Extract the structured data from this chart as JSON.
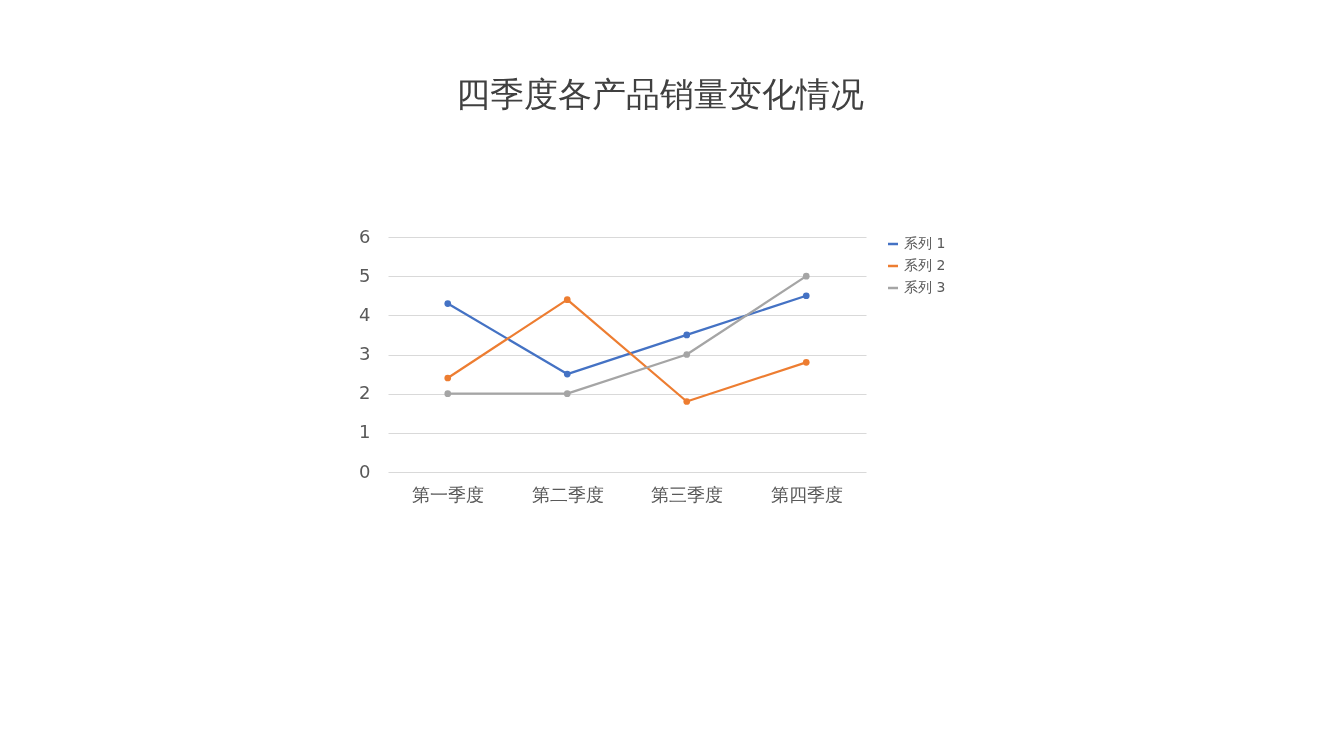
{
  "chart_data": {
    "type": "line",
    "title": "四季度各产品销量变化情况",
    "categories": [
      "第一季度",
      "第二季度",
      "第三季度",
      "第四季度"
    ],
    "series": [
      {
        "name": "系列 1",
        "color": "#4472c4",
        "values": [
          4.3,
          2.5,
          3.5,
          4.5
        ]
      },
      {
        "name": "系列 2",
        "color": "#ed7d31",
        "values": [
          2.4,
          4.4,
          1.8,
          2.8
        ]
      },
      {
        "name": "系列 3",
        "color": "#a5a5a5",
        "values": [
          2,
          2,
          3,
          5
        ]
      }
    ],
    "ylim": [
      0,
      6
    ],
    "yticks": [
      0,
      1,
      2,
      3,
      4,
      5,
      6
    ],
    "grid": "y",
    "legend": "right",
    "marker": "circle",
    "line_style": "solid"
  }
}
